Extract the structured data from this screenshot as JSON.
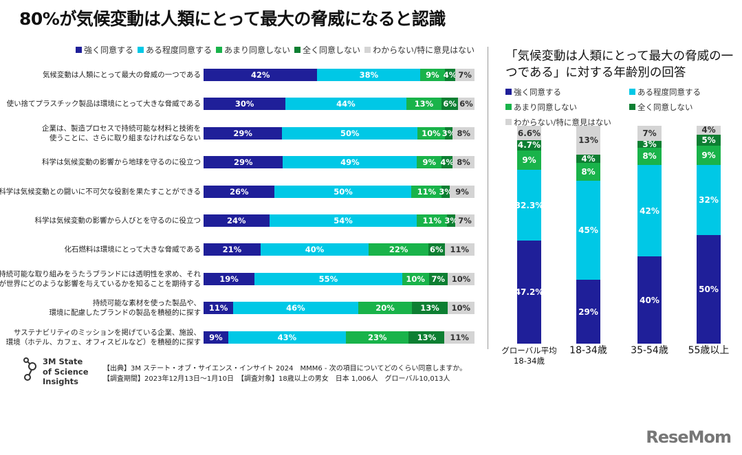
{
  "title": "80%が気候変動は人類にとって最大の脅威になると認識",
  "colors": {
    "strongly_agree": "#1f1f99",
    "somewhat_agree": "#00c8e6",
    "somewhat_disagree": "#19b34a",
    "strongly_disagree": "#0d7f32",
    "dont_know": "#d4d4d4"
  },
  "legend": [
    "強く同意する",
    "ある程度同意する",
    "あまり同意しない",
    "全く同意しない",
    "わからない/特に意見はない"
  ],
  "chart_data": [
    {
      "type": "bar",
      "orientation": "horizontal-stacked-100",
      "categories": [
        "気候変動は人類にとって最大の脅威の一つである",
        "使い捨てプラスチック製品は環境にとって大きな脅威である",
        "企業は、製造プロセスで持続可能な材料と技術を\n使うことに、さらに取り組まなければならない",
        "科学は気候変動の影響から地球を守るのに役立つ",
        "科学は気候変動との闘いに不可欠な役割を果たすことができる",
        "科学は気候変動の影響から人びとを守るのに役立つ",
        "化石燃料は環境にとって大きな脅威である",
        "持続可能な取り組みをうたうブランドには透明性を求め、それ\nが世界にどのような影響を与えているかを知ることを期待する",
        "持続可能な素材を使った製品や、\n環境に配慮したブランドの製品を積極的に探す",
        "サステナビリティのミッションを掲げている企業、施設、\n環境（ホテル、カフェ、オフィスビルなど）を積極的に探す"
      ],
      "series": [
        {
          "name": "強く同意する",
          "values": [
            42,
            30,
            29,
            29,
            26,
            24,
            21,
            19,
            11,
            9
          ]
        },
        {
          "name": "ある程度同意する",
          "values": [
            38,
            44,
            50,
            49,
            50,
            54,
            40,
            55,
            46,
            43
          ]
        },
        {
          "name": "あまり同意しない",
          "values": [
            9,
            13,
            10,
            9,
            11,
            11,
            22,
            10,
            20,
            23
          ]
        },
        {
          "name": "全く同意しない",
          "values": [
            4,
            6,
            3,
            4,
            3,
            3,
            6,
            7,
            13,
            13
          ]
        },
        {
          "name": "わからない/特に意見はない",
          "values": [
            7,
            6,
            8,
            8,
            9,
            7,
            11,
            10,
            10,
            11
          ]
        }
      ],
      "value_suffix": "%",
      "legend_placement": "top"
    },
    {
      "type": "bar",
      "orientation": "vertical-stacked-100",
      "title": "「気候変動は人類にとって最大の脅威の一つである」に対する年齢別の回答",
      "categories": [
        "グローバル平均\n18-34歳",
        "18-34歳",
        "35-54歳",
        "55歳以上"
      ],
      "series": [
        {
          "name": "強く同意する",
          "values": [
            47.2,
            29,
            40,
            50
          ],
          "labels": [
            "47.2%",
            "29%",
            "40%",
            "50%"
          ]
        },
        {
          "name": "ある程度同意する",
          "values": [
            32.3,
            45,
            42,
            32
          ],
          "labels": [
            "32.3%",
            "45%",
            "42%",
            "32%"
          ]
        },
        {
          "name": "あまり同意しない",
          "values": [
            9,
            8,
            8,
            9
          ],
          "labels": [
            "9%",
            "8%",
            "8%",
            "9%"
          ]
        },
        {
          "name": "全く同意しない",
          "values": [
            4.7,
            4,
            3,
            5
          ],
          "labels": [
            "4.7%",
            "4%",
            "3%",
            "5%"
          ]
        },
        {
          "name": "わからない/特に意見はない",
          "values": [
            6.6,
            13,
            7,
            4
          ],
          "labels": [
            "6.6%",
            "13%",
            "7%",
            "4%"
          ]
        }
      ],
      "legend_placement": "top"
    }
  ],
  "footer": {
    "logo_text": [
      "3M State",
      "of Science",
      "Insights"
    ],
    "source": "【出典】3M ステート・オブ・サイエンス・インサイト 2024　MMM6 - 次の項目についてどのくらい同意しますか。",
    "period": "【調査期間】2023年12月13日〜1月10日　【調査対象】18歳以上の男女　日本 1,006人　グローバル10,013人"
  },
  "watermark": "ReseMom"
}
